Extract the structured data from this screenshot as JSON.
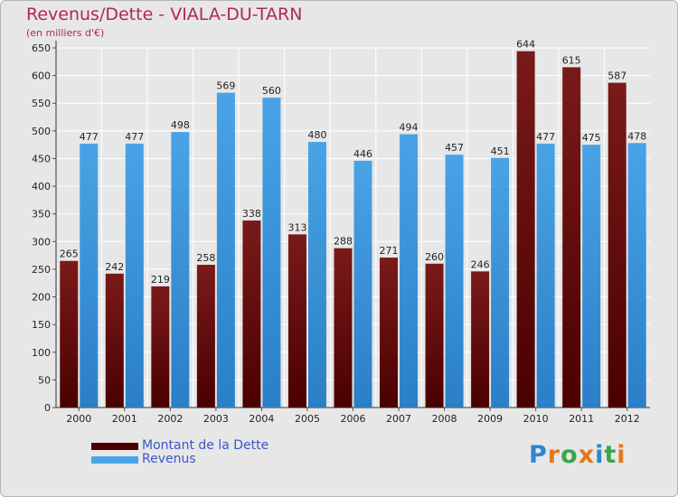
{
  "title": "Revenus/Dette - VIALA-DU-TARN",
  "subtitle": "(en milliers d'€)",
  "colors": {
    "dette": "#7a1a1a",
    "dette_dark": "#4a0000",
    "revenus": "#4aa3e6",
    "revenus_dark": "#2a7fc6",
    "title": "#b3245b",
    "legend_text": "#3a56c8",
    "grid": "#ffffff"
  },
  "brand": {
    "letters": [
      "P",
      "r",
      "o",
      "x",
      "i",
      "t",
      "i"
    ],
    "colors": [
      "#2d86cf",
      "#e0791c",
      "#3aa64a",
      "#e0791c",
      "#2d86cf",
      "#3aa64a",
      "#e0791c"
    ]
  },
  "chart_data": {
    "type": "bar",
    "categories": [
      "2000",
      "2001",
      "2002",
      "2003",
      "2004",
      "2005",
      "2006",
      "2007",
      "2008",
      "2009",
      "2010",
      "2011",
      "2012"
    ],
    "series": [
      {
        "name": "Montant de la Dette",
        "values": [
          265,
          242,
          219,
          258,
          338,
          313,
          288,
          271,
          260,
          246,
          644,
          615,
          587
        ]
      },
      {
        "name": "Revenus",
        "values": [
          477,
          477,
          498,
          569,
          560,
          480,
          446,
          494,
          457,
          451,
          477,
          475,
          478
        ]
      }
    ],
    "title": "Revenus/Dette - VIALA-DU-TARN",
    "subtitle": "(en milliers d'€)",
    "xlabel": "",
    "ylabel": "",
    "ylim": [
      0,
      650
    ],
    "ytick_step": 50,
    "grid": true,
    "legend_position": "bottom-left"
  }
}
